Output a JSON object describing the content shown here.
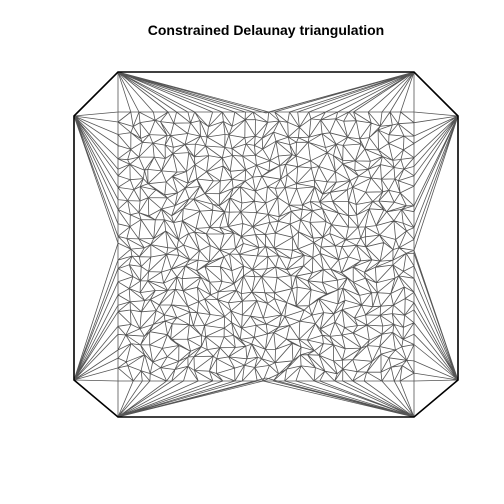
{
  "plot": {
    "title": "Constrained Delaunay triangulation"
  },
  "style": {
    "mesh_color": "#555555",
    "boundary_color": "#000000",
    "background": "#ffffff"
  },
  "mesh": {
    "description_type": "constrained-delaunay",
    "boundary_shape": "octagon",
    "interior_region": "square point cloud"
  }
}
